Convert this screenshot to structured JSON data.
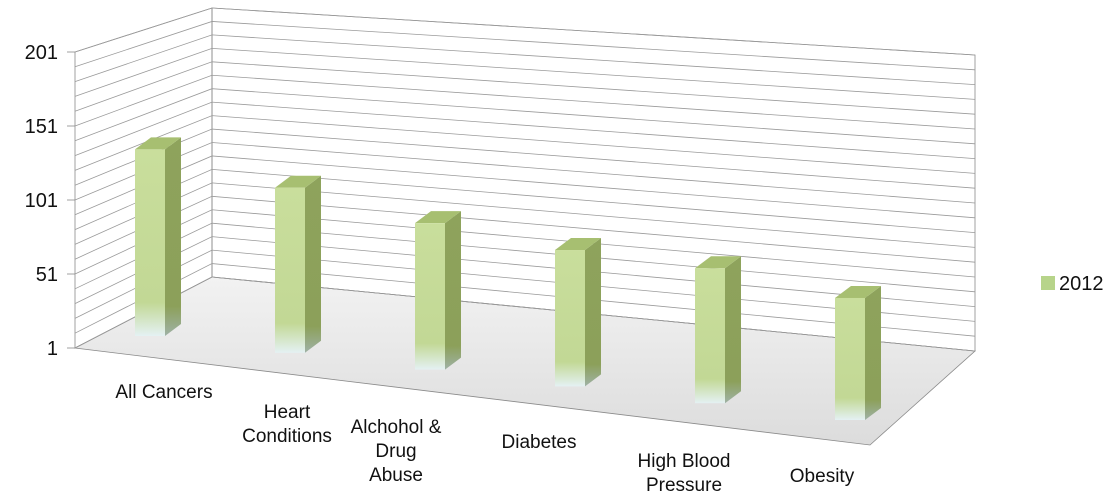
{
  "chart_data": {
    "type": "bar",
    "style": "3d-column",
    "title": "",
    "xlabel": "",
    "ylabel": "",
    "categories": [
      "All Cancers",
      "Heart Conditions",
      "Alchohol & Drug Abuse",
      "Diabetes",
      "High Blood Pressure",
      "Obesity"
    ],
    "category_lines": [
      [
        "All Cancers"
      ],
      [
        "Heart",
        "Conditions"
      ],
      [
        "Alchohol &",
        "Drug",
        "Abuse"
      ],
      [
        "Diabetes"
      ],
      [
        "High Blood",
        "Pressure"
      ],
      [
        "Obesity"
      ]
    ],
    "series": [
      {
        "name": "2012",
        "values": [
          131,
          116,
          103,
          96,
          95,
          86
        ]
      }
    ],
    "ylim": [
      1,
      201
    ],
    "yticks": [
      "1",
      "51",
      "101",
      "151",
      "201"
    ],
    "grid": true,
    "legend": "right",
    "colors": {
      "bar_front": "#c7dc97",
      "bar_side": "#8da25a",
      "bar_top": "#a7bf71",
      "legend": "#b7d48a"
    }
  }
}
